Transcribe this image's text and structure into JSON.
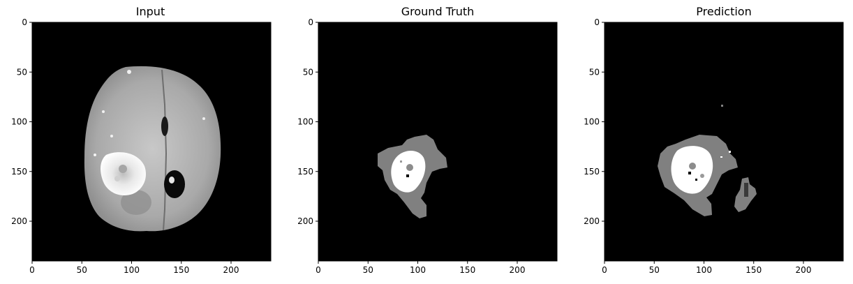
{
  "panels": [
    {
      "title": "Input",
      "x_ticks": [
        0,
        50,
        100,
        150,
        200
      ],
      "y_ticks": [
        0,
        50,
        100,
        150,
        200
      ],
      "extent": [
        0,
        240
      ],
      "image": "brain-mri-axial-slice"
    },
    {
      "title": "Ground Truth",
      "x_ticks": [
        0,
        50,
        100,
        150,
        200
      ],
      "y_ticks": [
        0,
        50,
        100,
        150,
        200
      ],
      "extent": [
        0,
        240
      ],
      "image": "tumor-segmentation-mask"
    },
    {
      "title": "Prediction",
      "x_ticks": [
        0,
        50,
        100,
        150,
        200
      ],
      "y_ticks": [
        0,
        50,
        100,
        150,
        200
      ],
      "extent": [
        0,
        240
      ],
      "image": "predicted-segmentation-mask"
    }
  ],
  "colors": {
    "background": "#000000",
    "edema": "#808080",
    "core": "#ffffff",
    "brain": "#b4b4b4"
  }
}
